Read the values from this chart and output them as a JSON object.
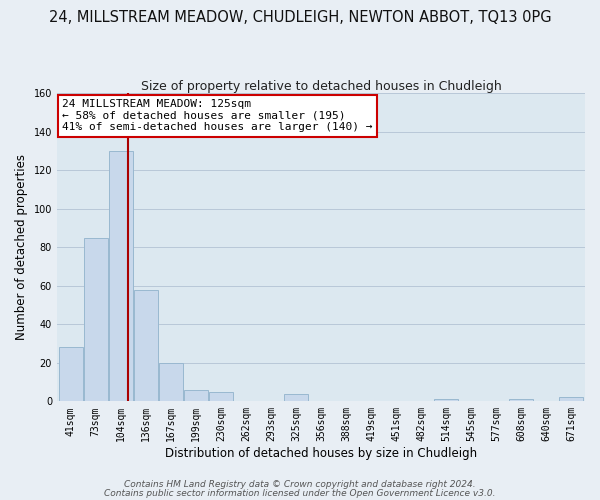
{
  "title": "24, MILLSTREAM MEADOW, CHUDLEIGH, NEWTON ABBOT, TQ13 0PG",
  "subtitle": "Size of property relative to detached houses in Chudleigh",
  "xlabel": "Distribution of detached houses by size in Chudleigh",
  "ylabel": "Number of detached properties",
  "bar_color": "#c8d8eb",
  "bar_edge_color": "#99b8d0",
  "vline_color": "#aa0000",
  "vline_x_index": 2,
  "annotation_line1": "24 MILLSTREAM MEADOW: 125sqm",
  "annotation_line2": "← 58% of detached houses are smaller (195)",
  "annotation_line3": "41% of semi-detached houses are larger (140) →",
  "annotation_box_color": "#ffffff",
  "annotation_box_edge": "#cc0000",
  "bins": [
    "41sqm",
    "73sqm",
    "104sqm",
    "136sqm",
    "167sqm",
    "199sqm",
    "230sqm",
    "262sqm",
    "293sqm",
    "325sqm",
    "356sqm",
    "388sqm",
    "419sqm",
    "451sqm",
    "482sqm",
    "514sqm",
    "545sqm",
    "577sqm",
    "608sqm",
    "640sqm",
    "671sqm"
  ],
  "values": [
    28,
    85,
    130,
    58,
    20,
    6,
    5,
    0,
    0,
    4,
    0,
    0,
    0,
    0,
    0,
    1,
    0,
    0,
    1,
    0,
    2
  ],
  "ylim": [
    0,
    160
  ],
  "yticks": [
    0,
    20,
    40,
    60,
    80,
    100,
    120,
    140,
    160
  ],
  "footer1": "Contains HM Land Registry data © Crown copyright and database right 2024.",
  "footer2": "Contains public sector information licensed under the Open Government Licence v3.0.",
  "bg_color": "#e8eef4",
  "plot_bg_color": "#dce8f0",
  "grid_color": "#b8c8d8",
  "title_fontsize": 10.5,
  "subtitle_fontsize": 9,
  "label_fontsize": 8.5,
  "tick_fontsize": 7,
  "annotation_fontsize": 8,
  "footer_fontsize": 6.5
}
